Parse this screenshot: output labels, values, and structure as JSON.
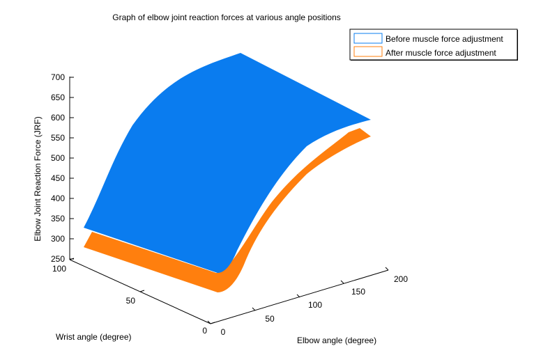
{
  "chart_data": {
    "type": "surface",
    "title": "Graph of elbow joint reaction forces at various angle positions",
    "xlabel": "Elbow angle (degree)",
    "ylabel": "Wrist angle (degree)",
    "zlabel": "Elbow Joint Reaction Force (JRF)",
    "xlim": [
      0,
      200
    ],
    "ylim": [
      0,
      100
    ],
    "zlim": [
      250,
      700
    ],
    "x_ticks": [
      "0",
      "50",
      "100",
      "150",
      "200"
    ],
    "y_ticks": [
      "0",
      "50",
      "100"
    ],
    "z_ticks": [
      "250",
      "300",
      "350",
      "400",
      "450",
      "500",
      "550",
      "600",
      "650",
      "700"
    ],
    "grid": false,
    "legend_position": "top-right",
    "series": [
      {
        "name": "Before muscle force adjustment",
        "color": "#0a7cef",
        "corners": [
          {
            "x": 0,
            "y": 0,
            "z": 280
          },
          {
            "x": 0,
            "y": 100,
            "z": 330
          },
          {
            "x": 180,
            "y": 100,
            "z": 720
          },
          {
            "x": 180,
            "y": 0,
            "z": 635
          }
        ]
      },
      {
        "name": "After muscle force adjustment",
        "color": "#ff7f0e",
        "corners": [
          {
            "x": 0,
            "y": 0,
            "z": 250
          },
          {
            "x": 0,
            "y": 100,
            "z": 290
          },
          {
            "x": 180,
            "y": 0,
            "z": 600
          }
        ]
      }
    ]
  }
}
